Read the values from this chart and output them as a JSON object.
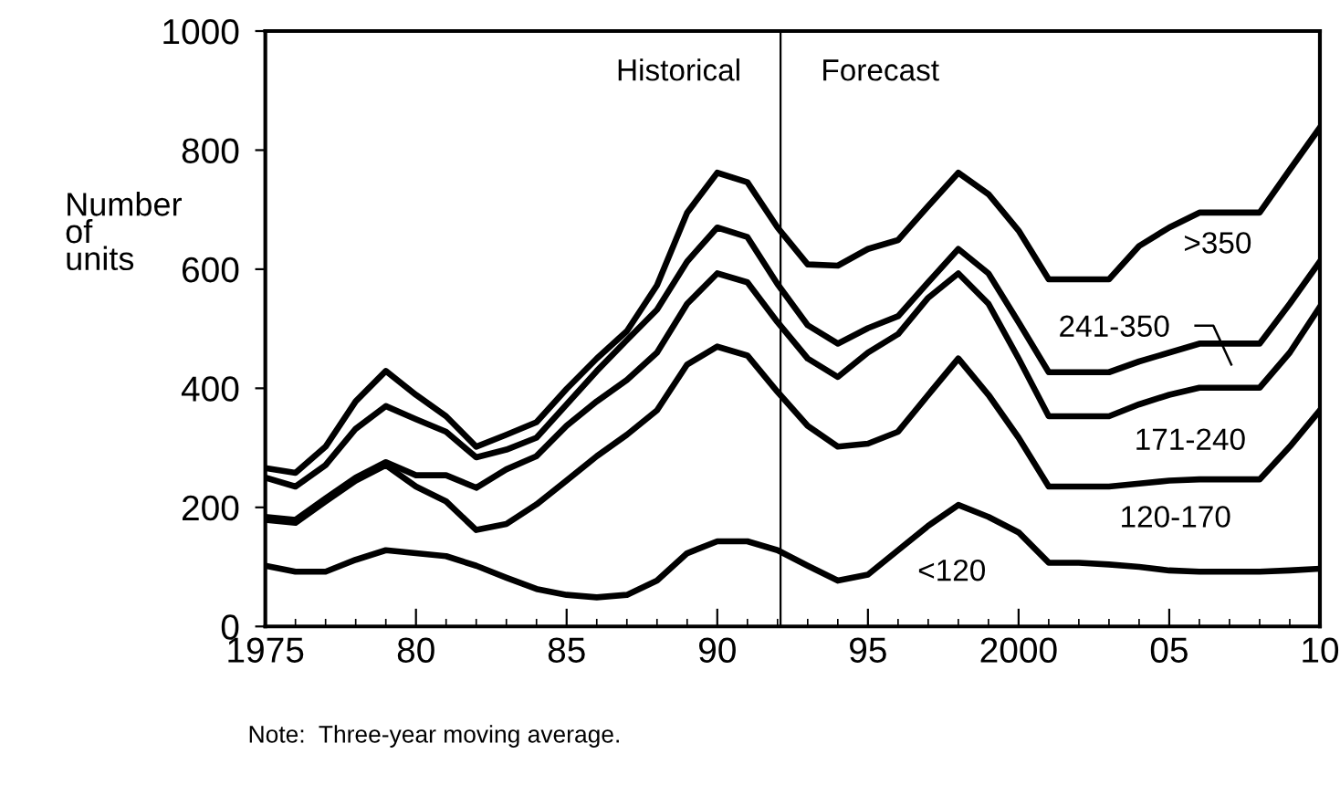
{
  "chart_data": {
    "type": "line",
    "ylabel": "Number\nof\nunits",
    "x": [
      1975,
      1976,
      1977,
      1978,
      1979,
      1980,
      1981,
      1982,
      1983,
      1984,
      1985,
      1986,
      1987,
      1988,
      1989,
      1990,
      1991,
      1992,
      1993,
      1994,
      1995,
      1996,
      1997,
      1998,
      1999,
      2000,
      2001,
      2002,
      2003,
      2004,
      2005,
      2006,
      2007,
      2008,
      2009,
      2010
    ],
    "series": [
      {
        "color": "#000000",
        "values": [
          266,
          258,
          302,
          378,
          429,
          389,
          353,
          302,
          322,
          343,
          399,
          450,
          496,
          573,
          695,
          762,
          746,
          670,
          608,
          606,
          634,
          649,
          706,
          762,
          726,
          665,
          583,
          583,
          583,
          639,
          670,
          695,
          695,
          695,
          767,
          838
        ]
      },
      {
        "color": "#000000",
        "values": [
          250,
          235,
          271,
          332,
          370,
          348,
          327,
          284,
          297,
          317,
          373,
          429,
          481,
          532,
          613,
          670,
          654,
          575,
          506,
          475,
          501,
          521,
          578,
          634,
          593,
          511,
          427,
          427,
          427,
          445,
          460,
          475,
          475,
          475,
          542,
          613
        ]
      },
      {
        "color": "#000000",
        "values": [
          184,
          179,
          215,
          250,
          276,
          254,
          254,
          233,
          264,
          286,
          337,
          378,
          414,
          460,
          542,
          593,
          578,
          511,
          450,
          419,
          460,
          491,
          552,
          593,
          542,
          450,
          353,
          353,
          353,
          373,
          389,
          401,
          401,
          401,
          460,
          537
        ]
      },
      {
        "color": "#000000",
        "values": [
          179,
          174,
          210,
          245,
          271,
          235,
          210,
          162,
          172,
          205,
          245,
          286,
          322,
          363,
          440,
          470,
          455,
          394,
          337,
          302,
          307,
          327,
          389,
          450,
          389,
          317,
          235,
          235,
          235,
          240,
          245,
          247,
          247,
          247,
          302,
          363
        ]
      },
      {
        "color": "#000000",
        "values": [
          102,
          92,
          92,
          112,
          128,
          123,
          118,
          102,
          82,
          63,
          53,
          49,
          53,
          77,
          123,
          143,
          143,
          128,
          102,
          77,
          87,
          128,
          169,
          204,
          184,
          158,
          107,
          107,
          104,
          100,
          94,
          92,
          92,
          92,
          94,
          97
        ]
      }
    ],
    "xlim": [
      1975,
      2010
    ],
    "ylim": [
      0,
      1000
    ],
    "xticks": [
      1975,
      {
        "value": 1980,
        "label": "80"
      },
      {
        "value": 1985,
        "label": "85"
      },
      {
        "value": 1990,
        "label": "90"
      },
      {
        "value": 1995,
        "label": "95"
      },
      2000,
      {
        "value": 2005,
        "label": "05"
      },
      {
        "value": 2010,
        "label": "10"
      }
    ],
    "yticks": [
      0,
      200,
      400,
      600,
      800,
      1000
    ],
    "ref_lines": [
      {
        "axis": "x",
        "value": 1992.1,
        "color": "#000000"
      }
    ],
    "annotations": [
      "Historical",
      "Forecast",
      ">350",
      "241-350",
      "171-240",
      "120-170",
      "<120",
      "Note:  Three-year moving average."
    ],
    "grid": false,
    "legend": false,
    "marker": "none",
    "line_style": "solid"
  }
}
